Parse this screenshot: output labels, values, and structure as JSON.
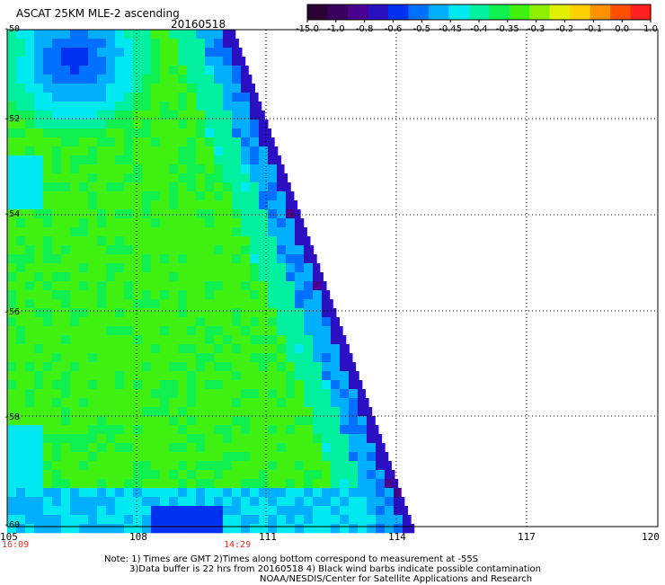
{
  "title": "ASCAT 25KM MLE-2 ascending",
  "date": "20160518",
  "colorbar": {
    "labels": [
      "-15.0",
      "-1.0",
      "-0.8",
      "-0.6",
      "-0.5",
      "-0.45",
      "-0.4",
      "-0.35",
      "-0.3",
      "-0.2",
      "-0.1",
      "0.0",
      "1.0"
    ],
    "colors": [
      "#2b0033",
      "#3a0060",
      "#4a0090",
      "#2a10c0",
      "#0030f0",
      "#0070ff",
      "#00b0ff",
      "#00e8f0",
      "#00f0a0",
      "#10f050",
      "#40f010",
      "#90f000",
      "#e0f000",
      "#ffd000",
      "#ff9000",
      "#ff5000",
      "#ff2020"
    ]
  },
  "lat_labels": [
    "-50",
    "-52",
    "-54",
    "-56",
    "-58",
    "-60"
  ],
  "lon_labels": [
    "105",
    "108",
    "111",
    "114",
    "117",
    "120"
  ],
  "time_labels": [
    "16:09",
    "14:29"
  ],
  "notes": [
    "Note: 1) Times are GMT 2)Times along bottom correspond to measurement at -55S",
    "3)Data buffer is 22 hrs from 20160518 4) Black wind barbs indicate possible contamination",
    "NOAA/NESDIS/Center for Satellite Applications and Research"
  ]
}
